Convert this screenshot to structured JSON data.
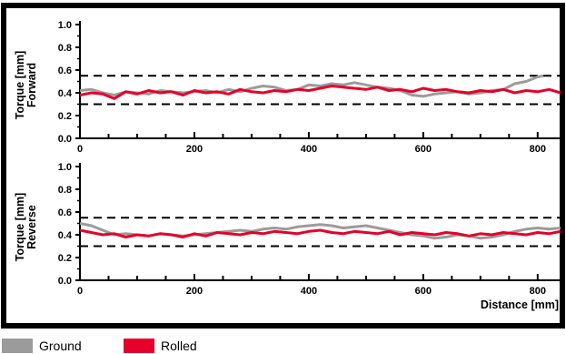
{
  "colors": {
    "ground": "#9b9b9b",
    "rolled": "#e4002b",
    "frame": "#000000",
    "limit": "#000000"
  },
  "legend": {
    "ground": "Ground",
    "rolled": "Rolled"
  },
  "chart_data": [
    {
      "type": "line",
      "ylabel_line1": "Torque [mm]",
      "ylabel_line2": "Forward",
      "xlabel": "",
      "xlim": [
        0,
        840
      ],
      "ylim": [
        0,
        1.0
      ],
      "x_ticks": [
        0,
        200,
        400,
        600,
        800
      ],
      "y_ticks": [
        0.0,
        0.2,
        0.4,
        0.6,
        0.8,
        1.0
      ],
      "y_tick_labels": [
        "0.0",
        "0.2",
        "0.4",
        "0.6",
        "0.8",
        "1.0"
      ],
      "limits": [
        0.3,
        0.55
      ],
      "series": [
        {
          "name": "Ground",
          "color": "#9b9b9b",
          "x": [
            0,
            20,
            40,
            60,
            80,
            100,
            120,
            140,
            160,
            180,
            200,
            220,
            240,
            260,
            280,
            300,
            320,
            340,
            360,
            380,
            400,
            420,
            440,
            460,
            480,
            500,
            520,
            540,
            560,
            580,
            600,
            620,
            640,
            660,
            680,
            700,
            720,
            740,
            760,
            780,
            800,
            810
          ],
          "values": [
            0.42,
            0.43,
            0.4,
            0.38,
            0.41,
            0.4,
            0.39,
            0.42,
            0.41,
            0.4,
            0.41,
            0.42,
            0.4,
            0.43,
            0.41,
            0.44,
            0.46,
            0.45,
            0.42,
            0.43,
            0.47,
            0.46,
            0.48,
            0.47,
            0.49,
            0.47,
            0.45,
            0.44,
            0.42,
            0.38,
            0.37,
            0.39,
            0.4,
            0.41,
            0.39,
            0.4,
            0.42,
            0.43,
            0.48,
            0.5,
            0.54,
            0.55
          ]
        },
        {
          "name": "Rolled",
          "color": "#e4002b",
          "x": [
            0,
            20,
            40,
            60,
            80,
            100,
            120,
            140,
            160,
            180,
            200,
            220,
            240,
            260,
            280,
            300,
            320,
            340,
            360,
            380,
            400,
            420,
            440,
            460,
            480,
            500,
            520,
            540,
            560,
            580,
            600,
            620,
            640,
            660,
            680,
            700,
            720,
            740,
            760,
            780,
            800,
            820,
            840
          ],
          "values": [
            0.38,
            0.4,
            0.39,
            0.35,
            0.41,
            0.39,
            0.42,
            0.4,
            0.41,
            0.38,
            0.42,
            0.4,
            0.41,
            0.39,
            0.43,
            0.41,
            0.4,
            0.42,
            0.41,
            0.43,
            0.42,
            0.44,
            0.46,
            0.45,
            0.44,
            0.43,
            0.45,
            0.42,
            0.43,
            0.41,
            0.44,
            0.42,
            0.43,
            0.41,
            0.4,
            0.42,
            0.41,
            0.43,
            0.4,
            0.42,
            0.41,
            0.43,
            0.4
          ]
        }
      ]
    },
    {
      "type": "line",
      "ylabel_line1": "Torque [mm]",
      "ylabel_line2": "Reverse",
      "xlabel": "Distance [mm]",
      "xlim": [
        0,
        840
      ],
      "ylim": [
        0,
        1.0
      ],
      "x_ticks": [
        0,
        200,
        400,
        600,
        800
      ],
      "y_ticks": [
        0.0,
        0.2,
        0.4,
        0.6,
        0.8,
        1.0
      ],
      "y_tick_labels": [
        "0.0",
        "0.2",
        "0.4",
        "0.6",
        "0.8",
        "1.0"
      ],
      "limits": [
        0.3,
        0.55
      ],
      "series": [
        {
          "name": "Ground",
          "color": "#9b9b9b",
          "x": [
            0,
            20,
            40,
            60,
            80,
            100,
            120,
            140,
            160,
            180,
            200,
            220,
            240,
            260,
            280,
            300,
            320,
            340,
            360,
            380,
            400,
            420,
            440,
            460,
            480,
            500,
            520,
            540,
            560,
            580,
            600,
            620,
            640,
            660,
            680,
            700,
            720,
            740,
            760,
            780,
            800,
            820,
            840
          ],
          "values": [
            0.5,
            0.48,
            0.44,
            0.4,
            0.41,
            0.4,
            0.39,
            0.41,
            0.4,
            0.39,
            0.4,
            0.41,
            0.42,
            0.43,
            0.44,
            0.43,
            0.45,
            0.46,
            0.45,
            0.47,
            0.48,
            0.49,
            0.48,
            0.46,
            0.47,
            0.48,
            0.46,
            0.44,
            0.42,
            0.4,
            0.39,
            0.37,
            0.38,
            0.4,
            0.39,
            0.37,
            0.38,
            0.4,
            0.43,
            0.45,
            0.46,
            0.45,
            0.46
          ]
        },
        {
          "name": "Rolled",
          "color": "#e4002b",
          "x": [
            0,
            20,
            40,
            60,
            80,
            100,
            120,
            140,
            160,
            180,
            200,
            220,
            240,
            260,
            280,
            300,
            320,
            340,
            360,
            380,
            400,
            420,
            440,
            460,
            480,
            500,
            520,
            540,
            560,
            580,
            600,
            620,
            640,
            660,
            680,
            700,
            720,
            740,
            760,
            780,
            800,
            820,
            840
          ],
          "values": [
            0.44,
            0.42,
            0.4,
            0.41,
            0.38,
            0.4,
            0.39,
            0.41,
            0.4,
            0.38,
            0.41,
            0.39,
            0.42,
            0.41,
            0.4,
            0.42,
            0.41,
            0.43,
            0.42,
            0.41,
            0.43,
            0.44,
            0.42,
            0.41,
            0.43,
            0.42,
            0.41,
            0.43,
            0.4,
            0.42,
            0.41,
            0.4,
            0.42,
            0.41,
            0.39,
            0.41,
            0.4,
            0.42,
            0.41,
            0.4,
            0.42,
            0.41,
            0.43
          ]
        }
      ]
    }
  ]
}
